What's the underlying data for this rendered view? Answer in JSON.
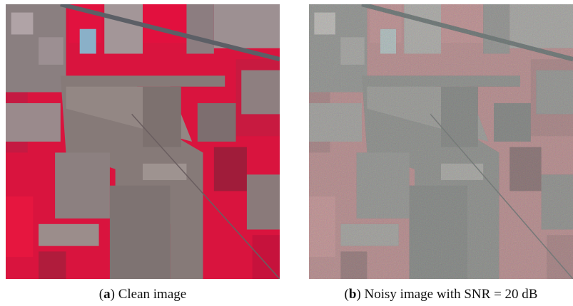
{
  "figure": {
    "panels": [
      {
        "caption": [
          "(",
          "a",
          ") Clean image"
        ]
      },
      {
        "caption": [
          "(",
          "b",
          ") Noisy image with SNR = 20 dB"
        ]
      }
    ]
  }
}
